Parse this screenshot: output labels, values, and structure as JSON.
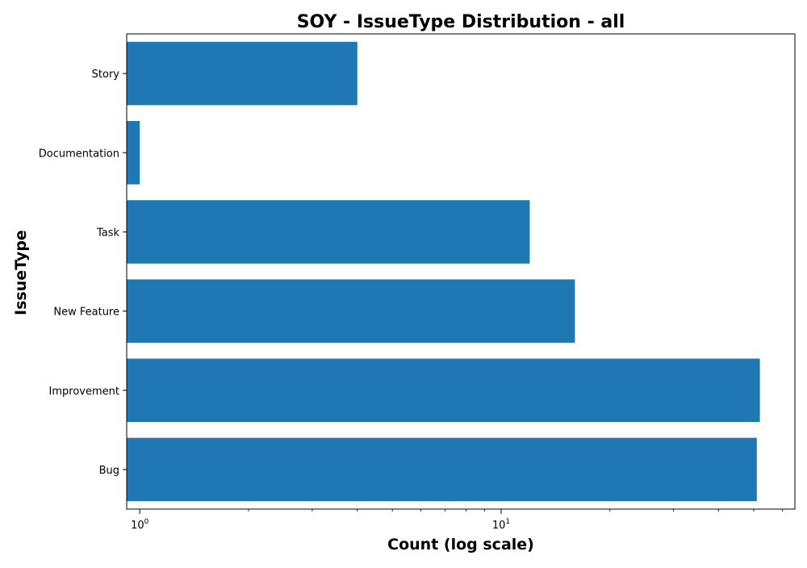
{
  "chart_data": {
    "type": "bar",
    "orientation": "horizontal",
    "title": "SOY - IssueType Distribution - all",
    "xlabel": "Count (log scale)",
    "ylabel": "IssueType",
    "x_scale": "log",
    "xlim": [
      0.92,
      65
    ],
    "x_tick_labels": [
      {
        "value": 1,
        "base": "10",
        "exponent": "0"
      },
      {
        "value": 10,
        "base": "10",
        "exponent": "1"
      }
    ],
    "categories": [
      "Story",
      "Documentation",
      "Task",
      "New Feature",
      "Improvement",
      "Bug"
    ],
    "values": [
      4,
      1,
      12,
      16,
      52,
      51
    ],
    "bar_color": "#1f77b4",
    "grid": false,
    "legend": "none"
  }
}
